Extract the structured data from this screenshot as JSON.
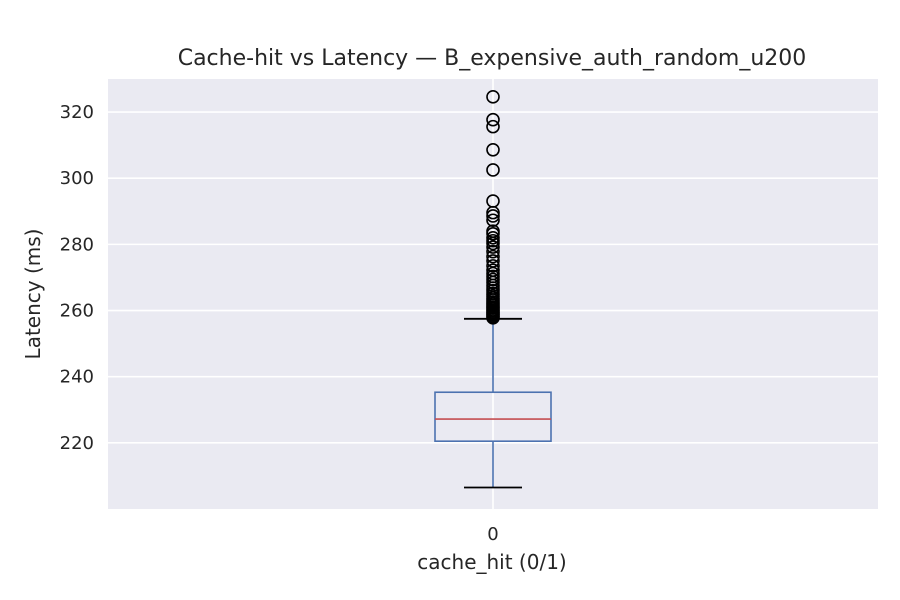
{
  "chart_data": {
    "type": "box",
    "title": "Cache-hit vs Latency — B_expensive_auth_random_u200",
    "xlabel": "cache_hit (0/1)",
    "ylabel": "Latency (ms)",
    "ylim": [
      200,
      330
    ],
    "yticks": [
      220,
      240,
      260,
      280,
      300,
      320
    ],
    "grid": true,
    "categories": [
      "0"
    ],
    "boxes": [
      {
        "category": "0",
        "whisker_low": 206.5,
        "q1": 220.5,
        "median": 227.2,
        "q3": 235.3,
        "whisker_high": 257.5,
        "outliers": [
          257.8,
          258.2,
          258.6,
          259.0,
          259.4,
          259.8,
          260.2,
          260.7,
          261.1,
          261.6,
          262.1,
          262.6,
          263.2,
          263.8,
          264.5,
          265.2,
          266.0,
          266.8,
          267.6,
          268.5,
          269.4,
          270.3,
          271.2,
          272.2,
          273.5,
          275.0,
          276.3,
          277.8,
          279.2,
          280.3,
          281.1,
          282.0,
          283.2,
          284.0,
          287.3,
          288.6,
          289.6,
          293.1,
          302.5,
          308.6,
          315.6,
          317.7,
          324.6
        ]
      }
    ],
    "colors": {
      "plot_bg": "#eaeaf2",
      "grid": "#ffffff",
      "box": "#4c72b0",
      "median": "#c44e52",
      "whisker_cap": "#000000",
      "outlier": "#000000"
    }
  }
}
